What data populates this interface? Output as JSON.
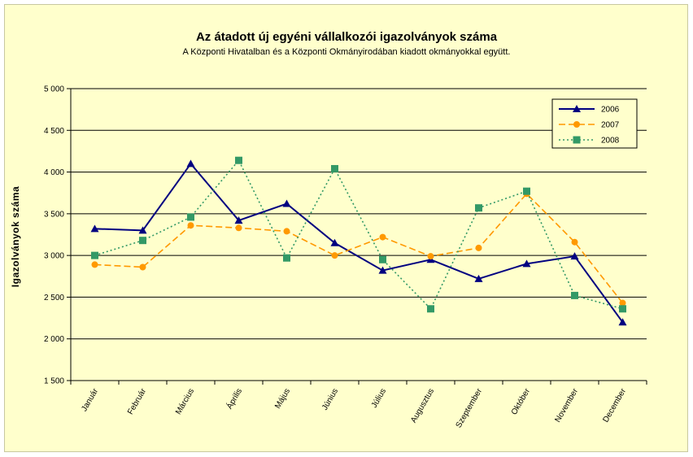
{
  "chart_data": {
    "type": "line",
    "title": "Az átadott új egyéni vállalkozói  igazolványok száma",
    "subtitle": "A Központi Hivatalban és a Központi Okmányirodában kiadott okmányokkal együtt.",
    "ylabel": "Igazolványok száma",
    "xlabel": "",
    "ylim": [
      1500,
      5000
    ],
    "yticks": [
      1500,
      2000,
      2500,
      3000,
      3500,
      4000,
      4500,
      5000
    ],
    "ytick_labels": [
      "1 500",
      "2 000",
      "2 500",
      "3 000",
      "3 500",
      "4 000",
      "4 500",
      "5 000"
    ],
    "grid": true,
    "legend_position": "top-right",
    "categories": [
      "Január",
      "Február",
      "Március",
      "Április",
      "Május",
      "Június",
      "Július",
      "Augusztus",
      "Szeptember",
      "Október",
      "November",
      "December"
    ],
    "series": [
      {
        "name": "2006",
        "color": "#000080",
        "dash": "solid",
        "marker": "triangle",
        "values": [
          3320,
          3300,
          4100,
          3420,
          3620,
          3150,
          2820,
          2950,
          2720,
          2900,
          2990,
          2200
        ]
      },
      {
        "name": "2007",
        "color": "#ff9900",
        "dash": "dashed",
        "marker": "circle",
        "values": [
          2890,
          2860,
          3360,
          3330,
          3290,
          3000,
          3220,
          2990,
          3090,
          3740,
          3160,
          2430
        ]
      },
      {
        "name": "2008",
        "color": "#339966",
        "dash": "dotted",
        "marker": "square",
        "values": [
          3000,
          3180,
          3460,
          4140,
          2970,
          4040,
          2950,
          2360,
          3570,
          3770,
          2520,
          2360
        ]
      }
    ]
  }
}
